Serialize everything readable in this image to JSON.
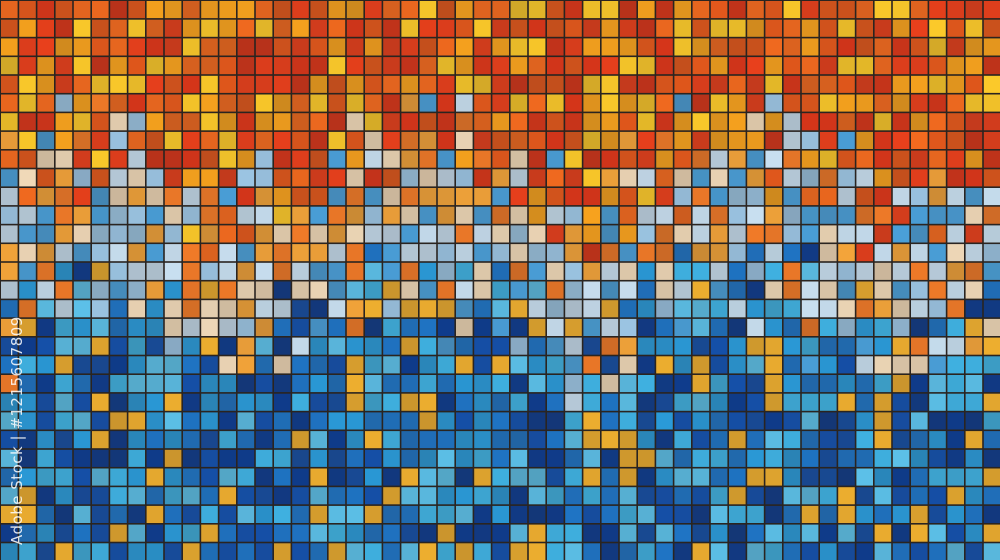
{
  "image": {
    "subject": "glass facade mosaic",
    "colors": {
      "top_warm": [
        "#e8401c",
        "#f26a1f",
        "#f7a21e",
        "#fbc92a",
        "#e2581c",
        "#d8361a"
      ],
      "mid_mix": [
        "#f3a43a",
        "#9bc4e2",
        "#f0d9b8",
        "#4a9fd8",
        "#f07a28",
        "#c8dff0"
      ],
      "bottom_cool": [
        "#1f74c4",
        "#2a9ad8",
        "#1550a8",
        "#3fb0e0",
        "#0f3c8c",
        "#5cc0e8",
        "#f0b030"
      ],
      "grid_line": "#2a2420"
    }
  },
  "watermark": {
    "text": "Adobe Stock | #1215607809"
  }
}
